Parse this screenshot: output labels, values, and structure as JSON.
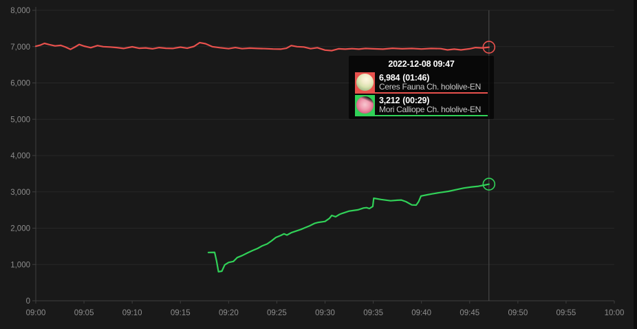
{
  "colors": {
    "background": "#191919",
    "gridline": "#282828",
    "axis": "#3e3e3e",
    "tick_label": "#8e8e8e",
    "crosshair": "#4f4f4f",
    "tooltip_background": "rgba(0,0,0,0.66)",
    "tooltip_title_text": "#ffffff",
    "tooltip_channel_text": "#c9c9c9",
    "series_red": "#e8514d",
    "series_green": "#31d158"
  },
  "tooltip": {
    "timestamp": "2022-12-08 09:47",
    "rows": [
      {
        "value": "6,984",
        "duration": "(01:46)",
        "channel": "Ceres Fauna Ch. hololive-EN",
        "color": "#e8514d"
      },
      {
        "value": "3,212",
        "duration": "(00:29)",
        "channel": "Mori Calliope Ch. hololive-EN",
        "color": "#31d158"
      }
    ]
  },
  "chart_data": {
    "type": "line",
    "title": "",
    "xlabel": "",
    "ylabel": "",
    "x_axis_unit": "time (HH:MM), minutes after 09:00",
    "xlim_minutes": [
      0,
      60
    ],
    "ylim": [
      0,
      8000
    ],
    "grid": true,
    "legend_position": "hover tooltip overlay",
    "x_ticks": [
      {
        "minutes": 0,
        "label": "09:00"
      },
      {
        "minutes": 5,
        "label": "09:05"
      },
      {
        "minutes": 10,
        "label": "09:10"
      },
      {
        "minutes": 15,
        "label": "09:15"
      },
      {
        "minutes": 20,
        "label": "09:20"
      },
      {
        "minutes": 25,
        "label": "09:25"
      },
      {
        "minutes": 30,
        "label": "09:30"
      },
      {
        "minutes": 35,
        "label": "09:35"
      },
      {
        "minutes": 40,
        "label": "09:40"
      },
      {
        "minutes": 45,
        "label": "09:45"
      },
      {
        "minutes": 50,
        "label": "09:50"
      },
      {
        "minutes": 55,
        "label": "09:55"
      },
      {
        "minutes": 60,
        "label": "10:00"
      }
    ],
    "y_ticks": [
      {
        "value": 0,
        "label": "0"
      },
      {
        "value": 1000,
        "label": "1,000"
      },
      {
        "value": 2000,
        "label": "2,000"
      },
      {
        "value": 3000,
        "label": "3,000"
      },
      {
        "value": 4000,
        "label": "4,000"
      },
      {
        "value": 5000,
        "label": "5,000"
      },
      {
        "value": 6000,
        "label": "6,000"
      },
      {
        "value": 7000,
        "label": "7,000"
      },
      {
        "value": 8000,
        "label": "8,000"
      }
    ],
    "crosshair": {
      "minutes": 47,
      "label": "09:47"
    },
    "series": [
      {
        "name": "Ceres Fauna Ch. hololive-EN",
        "color": "#e8514d",
        "current_value": 6984,
        "elapsed": "01:46",
        "points": [
          [
            0,
            7010
          ],
          [
            0.5,
            7045
          ],
          [
            0.9,
            7090
          ],
          [
            1.4,
            7055
          ],
          [
            2.0,
            7020
          ],
          [
            2.6,
            7035
          ],
          [
            3.1,
            6985
          ],
          [
            3.6,
            6925
          ],
          [
            4.1,
            6995
          ],
          [
            4.5,
            7060
          ],
          [
            5.0,
            7015
          ],
          [
            5.7,
            6970
          ],
          [
            6.4,
            7030
          ],
          [
            7.0,
            7000
          ],
          [
            7.7,
            6990
          ],
          [
            8.4,
            6975
          ],
          [
            9.1,
            6950
          ],
          [
            10.0,
            6995
          ],
          [
            10.7,
            6955
          ],
          [
            11.4,
            6965
          ],
          [
            12.1,
            6940
          ],
          [
            12.8,
            6975
          ],
          [
            13.5,
            6955
          ],
          [
            14.2,
            6950
          ],
          [
            15.0,
            6985
          ],
          [
            15.7,
            6955
          ],
          [
            16.4,
            7005
          ],
          [
            17.0,
            7110
          ],
          [
            17.6,
            7080
          ],
          [
            18.3,
            7000
          ],
          [
            19.1,
            6970
          ],
          [
            20.0,
            6945
          ],
          [
            20.7,
            6975
          ],
          [
            21.4,
            6945
          ],
          [
            22.2,
            6960
          ],
          [
            23.0,
            6950
          ],
          [
            23.8,
            6945
          ],
          [
            24.6,
            6935
          ],
          [
            25.4,
            6930
          ],
          [
            26.0,
            6955
          ],
          [
            26.5,
            7030
          ],
          [
            27.1,
            7000
          ],
          [
            27.8,
            6990
          ],
          [
            28.5,
            6945
          ],
          [
            29.2,
            6970
          ],
          [
            30.0,
            6905
          ],
          [
            30.7,
            6890
          ],
          [
            31.4,
            6940
          ],
          [
            32.1,
            6930
          ],
          [
            32.8,
            6945
          ],
          [
            33.5,
            6930
          ],
          [
            34.2,
            6950
          ],
          [
            35.0,
            6940
          ],
          [
            36.0,
            6930
          ],
          [
            37.0,
            6955
          ],
          [
            38.0,
            6940
          ],
          [
            39.0,
            6950
          ],
          [
            40.0,
            6935
          ],
          [
            41.0,
            6950
          ],
          [
            42.0,
            6945
          ],
          [
            42.7,
            6910
          ],
          [
            43.4,
            6930
          ],
          [
            44.1,
            6910
          ],
          [
            45.0,
            6940
          ],
          [
            45.6,
            6975
          ],
          [
            46.3,
            6965
          ],
          [
            47,
            6984
          ]
        ]
      },
      {
        "name": "Mori Calliope Ch. hololive-EN",
        "color": "#31d158",
        "current_value": 3212,
        "elapsed": "00:29",
        "points": [
          [
            17.9,
            1330
          ],
          [
            18.55,
            1335
          ],
          [
            18.75,
            1100
          ],
          [
            18.95,
            800
          ],
          [
            19.3,
            815
          ],
          [
            19.6,
            990
          ],
          [
            20.0,
            1055
          ],
          [
            20.5,
            1085
          ],
          [
            20.9,
            1190
          ],
          [
            21.4,
            1245
          ],
          [
            22.0,
            1325
          ],
          [
            22.5,
            1385
          ],
          [
            23.0,
            1440
          ],
          [
            23.5,
            1515
          ],
          [
            24.0,
            1565
          ],
          [
            24.45,
            1650
          ],
          [
            24.9,
            1745
          ],
          [
            25.4,
            1800
          ],
          [
            25.75,
            1845
          ],
          [
            26.05,
            1810
          ],
          [
            26.5,
            1875
          ],
          [
            27.0,
            1920
          ],
          [
            27.5,
            1965
          ],
          [
            28.0,
            2020
          ],
          [
            28.4,
            2065
          ],
          [
            28.9,
            2130
          ],
          [
            29.3,
            2160
          ],
          [
            30.0,
            2185
          ],
          [
            30.45,
            2270
          ],
          [
            30.7,
            2350
          ],
          [
            31.1,
            2315
          ],
          [
            31.5,
            2380
          ],
          [
            31.8,
            2410
          ],
          [
            32.5,
            2470
          ],
          [
            33.4,
            2505
          ],
          [
            34.0,
            2555
          ],
          [
            34.3,
            2565
          ],
          [
            34.6,
            2540
          ],
          [
            34.95,
            2600
          ],
          [
            35.05,
            2825
          ],
          [
            35.8,
            2790
          ],
          [
            36.8,
            2755
          ],
          [
            37.5,
            2770
          ],
          [
            37.9,
            2775
          ],
          [
            38.4,
            2730
          ],
          [
            39.0,
            2640
          ],
          [
            39.45,
            2635
          ],
          [
            39.7,
            2730
          ],
          [
            39.95,
            2885
          ],
          [
            40.6,
            2920
          ],
          [
            41.1,
            2945
          ],
          [
            41.9,
            2980
          ],
          [
            42.8,
            3015
          ],
          [
            43.6,
            3060
          ],
          [
            44.4,
            3105
          ],
          [
            45.2,
            3135
          ],
          [
            45.9,
            3155
          ],
          [
            46.5,
            3185
          ],
          [
            47,
            3212
          ]
        ]
      }
    ]
  }
}
